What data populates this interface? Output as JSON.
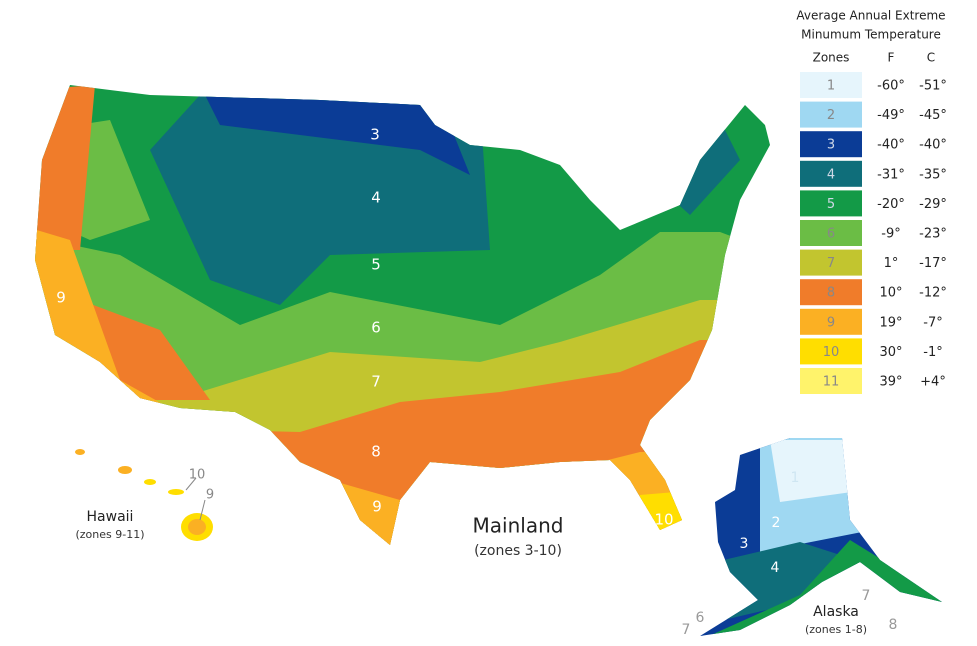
{
  "legend": {
    "title": [
      "Average Annual Extreme",
      "Minumum Temperature"
    ],
    "headers": [
      "Zones",
      "F",
      "C"
    ],
    "rows": [
      {
        "zone": "1",
        "f": "-60°",
        "c": "-51°",
        "color": "#e6f5fc"
      },
      {
        "zone": "2",
        "f": "-49°",
        "c": "-45°",
        "color": "#9fd8f2"
      },
      {
        "zone": "3",
        "f": "-40°",
        "c": "-40°",
        "color": "#0b3c96"
      },
      {
        "zone": "4",
        "f": "-31°",
        "c": "-35°",
        "color": "#0f6e7a"
      },
      {
        "zone": "5",
        "f": "-20°",
        "c": "-29°",
        "color": "#139a47"
      },
      {
        "zone": "6",
        "f": "-9°",
        "c": "-23°",
        "color": "#6bbd45"
      },
      {
        "zone": "7",
        "f": "1°",
        "c": "-17°",
        "color": "#c2c52f"
      },
      {
        "zone": "8",
        "f": "10°",
        "c": "-12°",
        "color": "#f07c2a"
      },
      {
        "zone": "9",
        "f": "19°",
        "c": "-7°",
        "color": "#fbb023"
      },
      {
        "zone": "10",
        "f": "30°",
        "c": "-1°",
        "color": "#ffde00"
      },
      {
        "zone": "11",
        "f": "39°",
        "c": "+4°",
        "color": "#fff36b"
      }
    ]
  },
  "map": {
    "mainland": {
      "name": "Mainland",
      "note": "(zones 3-10)",
      "zone_labels": [
        "3",
        "4",
        "5",
        "6",
        "7",
        "8",
        "9",
        "9",
        "10"
      ]
    },
    "hawaii": {
      "name": "Hawaii",
      "note": "(zones 9-11)",
      "zone_labels": [
        "10",
        "9"
      ]
    },
    "alaska": {
      "name": "Alaska",
      "note": "(zones 1-8)",
      "zone_labels": [
        "1",
        "2",
        "3",
        "4",
        "7",
        "6",
        "7",
        "8"
      ]
    }
  }
}
